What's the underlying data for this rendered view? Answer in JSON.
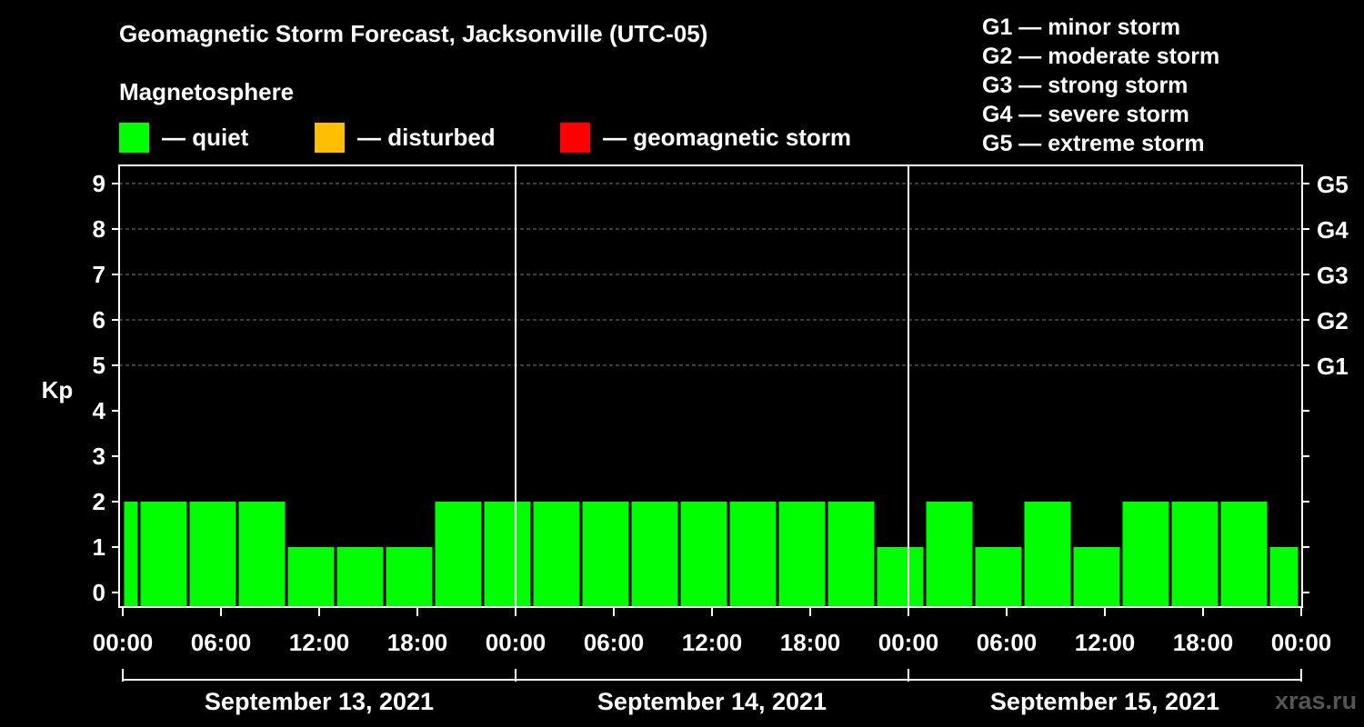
{
  "title": "Geomagnetic Storm Forecast, Jacksonville (UTC-05)",
  "subtitle": "Magnetosphere",
  "legend": [
    {
      "label": "— quiet",
      "color": "#00ff00"
    },
    {
      "label": "— disturbed",
      "color": "#ffbf00"
    },
    {
      "label": "— geomagnetic storm",
      "color": "#ff0000"
    }
  ],
  "g_scale": [
    "G1 — minor storm",
    "G2 — moderate storm",
    "G3 — strong storm",
    "G4 — severe storm",
    "G5 — extreme storm"
  ],
  "watermark": "xras.ru",
  "chart_data": {
    "type": "bar",
    "ylabel": "Kp",
    "ylim": [
      0,
      9
    ],
    "y_ticks": [
      "0",
      "1",
      "2",
      "3",
      "4",
      "5",
      "6",
      "7",
      "8",
      "9"
    ],
    "right_ticks": [
      "G1",
      "G2",
      "G3",
      "G4",
      "G5"
    ],
    "x_ticks": [
      "00:00",
      "06:00",
      "12:00",
      "18:00",
      "00:00",
      "06:00",
      "12:00",
      "18:00",
      "00:00",
      "06:00",
      "12:00",
      "18:00",
      "00:00"
    ],
    "days": [
      "September 13, 2021",
      "September 14, 2021",
      "September 15, 2021"
    ],
    "grid": "dashed horizontal lines at Kp 5–9",
    "bar_color": "#00ff00",
    "series": [
      {
        "values": [
          2,
          2,
          2,
          2,
          1,
          1,
          1,
          2,
          2,
          2,
          2,
          2,
          2,
          2,
          2,
          2,
          1,
          2,
          1,
          2,
          1,
          2,
          2,
          2,
          1
        ]
      }
    ]
  }
}
